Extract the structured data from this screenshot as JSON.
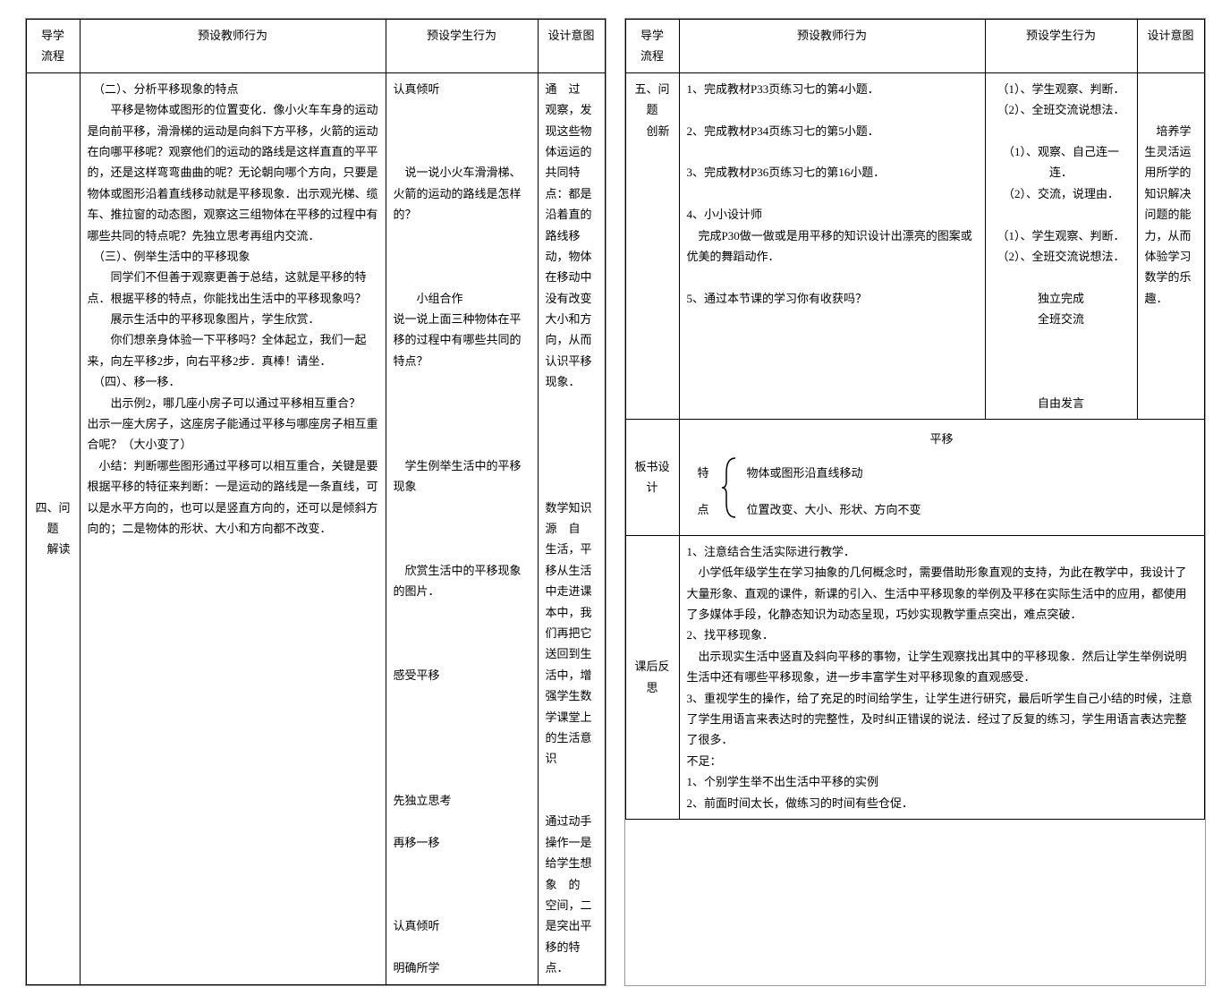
{
  "left": {
    "headers": {
      "stage": "导学\n流程",
      "teacher": "预设教师行为",
      "student": "预设学生行为",
      "intent": "设计意图"
    },
    "row1": {
      "stage": "四、问题\n　解读",
      "teacher": "　（二）、分析平移现象的特点\n　　平移是物体或图形的位置变化．像小火车车身的运动是向前平移，滑滑梯的运动是向斜下方平移，火箭的运动在向哪平移呢？观察他们的运动的路线是这样直直的平平的，还是这样弯弯曲曲的呢？无论朝向哪个方向，只要是物体或图形沿着直线移动就是平移现象．出示观光梯、缆车、推拉窗的动态图，观察这三组物体在平移的过程中有哪些共同的特点呢？先独立思考再组内交流．\n　（三）、例举生活中的平移现象\n　　同学们不但善于观察更善于总结，这就是平移的特点．根据平移的特点，你能找出生活中的平移现象吗？\n　　展示生活中的平移现象图片，学生欣赏．\n　　你们想亲身体验一下平移吗？全体起立，我们一起来，向左平移2步，向右平移2步．真棒！请坐．\n　（四）、移一移．\n　　出示例2，哪几座小房子可以通过平移相互重合？　出示一座大房子，这座房子能通过平移与哪座房子相互重合呢？（大小变了）\n　小结：判断哪些图形通过平移可以相互重合，关键是要根据平移的特征来判断：一是运动的路线是一条直线，可以是水平方向的，也可以是竖直方向的，还可以是倾斜方向的；二是物体的形状、大小和方向都不改变．",
      "student": "认真倾听\n\n\n\n　说一说小火车滑滑梯、火箭的运动的路线是怎样的？\n\n\n\n　　小组合作\n说一说上面三种物体在平移的过程中有哪些共同的特点？\n\n\n\n\n　学生例举生活中的平移现象\n\n\n\n　欣赏生活中的平移现象的图片．\n\n\n\n感受平移\n\n\n\n\n\n先独立思考\n\n再移一移\n\n\n\n认真倾听\n\n明确所学",
      "intent": "通　过　观察，发现这些物体运运的共同特点：都是沿着直的路线移动，物体在移动中没有改变大小和方向，从而认识平移现象．\n\n\n\n\n\n数学知识源　自　生活，平移从生活中走进课本中，我们再把它送回到生活中，增强学生数学课堂上的生活意识\n\n\n通过动手操作一是给学生想象　的　空间，二是突出平移的特点．"
    }
  },
  "right": {
    "headers": {
      "stage": "导学\n流程",
      "teacher": "预设教师行为",
      "student": "预设学生行为",
      "intent": "设计意图"
    },
    "row1": {
      "stage": "五、问题\n　创新",
      "teacher": "1、完成教材P33页练习七的第4小题．\n\n2、完成教材P34页练习七的第5小题．\n\n3、完成教材P36页练习七的第16小题．\n\n4、小小设计师\n　完成P30做一做或是用平移的知识设计出漂亮的图案或优美的舞蹈动作．\n\n5、通过本节课的学习你有收获吗？",
      "student": "（1）、学生观察、判断．\n（2）、全班交流说想法．\n\n（1）、观察、自己连一连．\n（2）、交流，说理由．\n\n（1）、学生观察、判断．\n（2）、全班交流说想法．\n\n独立完成\n全班交流\n\n\n\n自由发言",
      "intent": "\n\n　培养学生灵活运用所学的知识解决问题的能力，从而体验学习数学的乐趣．"
    },
    "banshu": {
      "label": "板书设计",
      "title": "平移",
      "char1": "特",
      "char2": "点",
      "line1": "物体或图形沿直线移动",
      "line2": "位置改变、大小、形状、方向不变"
    },
    "kehou": {
      "label": "课后反思",
      "text": "1、注意结合生活实际进行教学．\n　小学低年级学生在学习抽象的几何概念时，需要借助形象直观的支持，为此在教学中，我设计了大量形象、直观的课件，新课的引入、生活中平移现象的举例及平移在实际生活中的应用，都使用了多媒体手段，化静态知识为动态呈现，巧妙实现教学重点突出，难点突破．\n2、找平移现象．\n　出示现实生活中竖直及斜向平移的事物，让学生观察找出其中的平移现象．然后让学生举例说明生活中还有哪些平移现象，进一步丰富学生对平移现象的直观感受．\n3、重视学生的操作，给了充足的时间给学生，让学生进行研究，最后听学生自己小结的时候，注意了学生用语言来表达时的完整性，及时纠正错误的说法．经过了反复的练习，学生用语言表达完整了很多．\n不足：\n1、个别学生举不出生活中平移的实例\n2、前面时间太长，做练习的时间有些仓促．"
    }
  }
}
